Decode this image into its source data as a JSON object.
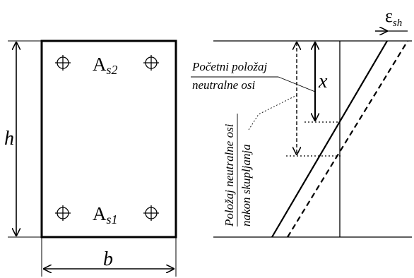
{
  "section": {
    "reinforcement_top": {
      "base": "A",
      "sub": "s2"
    },
    "reinforcement_bottom": {
      "base": "A",
      "sub": "s1"
    },
    "height_label": "h",
    "width_label": "b"
  },
  "strain_diagram": {
    "shrinkage_label": {
      "base": "ε",
      "sub": "sh"
    },
    "depth_label": "x",
    "initial_axis_label": [
      "Početni položaj",
      "neutralne osi"
    ],
    "shifted_axis_label": [
      "Položaj neutralne osi",
      "nakon skupljanja"
    ]
  },
  "colors": {
    "ink": "#000000",
    "guide": "#7a7a7a",
    "background": "#ffffff"
  }
}
